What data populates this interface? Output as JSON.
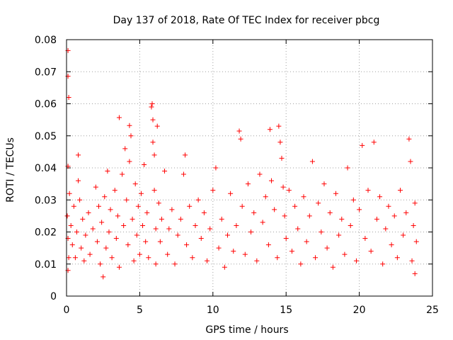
{
  "chart_data": {
    "type": "scatter",
    "title": "Day 137 of 2018, Rate Of TEC Index for receiver pbcg",
    "xlabel": "GPS time / hours",
    "ylabel": "ROTI / TECUs",
    "xlim": [
      0,
      25
    ],
    "ylim": [
      0,
      0.08
    ],
    "xticks": [
      0,
      5,
      10,
      15,
      20,
      25
    ],
    "xtick_labels": [
      "0",
      "5",
      "10",
      "15",
      "20",
      "25"
    ],
    "yticks": [
      0,
      0.01,
      0.02,
      0.03,
      0.04,
      0.05,
      0.06,
      0.07,
      0.08
    ],
    "ytick_labels": [
      "0",
      "0.01",
      "0.02",
      "0.03",
      "0.04",
      "0.05",
      "0.06",
      "0.07",
      "0.08"
    ],
    "grid": true,
    "marker": "+",
    "color": "#ff0000",
    "series": [
      {
        "name": "ROTI",
        "points": [
          [
            0.1,
            0.0766
          ],
          [
            0.1,
            0.0686
          ],
          [
            0.15,
            0.062
          ],
          [
            0.1,
            0.0405
          ],
          [
            0.2,
            0.032
          ],
          [
            0.05,
            0.025
          ],
          [
            0.1,
            0.018
          ],
          [
            0.15,
            0.012
          ],
          [
            0.1,
            0.008
          ],
          [
            0.3,
            0.022
          ],
          [
            0.4,
            0.016
          ],
          [
            0.5,
            0.028
          ],
          [
            0.6,
            0.012
          ],
          [
            0.7,
            0.02
          ],
          [
            0.8,
            0.044
          ],
          [
            0.8,
            0.036
          ],
          [
            0.9,
            0.03
          ],
          [
            1.0,
            0.015
          ],
          [
            1.1,
            0.024
          ],
          [
            1.2,
            0.011
          ],
          [
            1.3,
            0.019
          ],
          [
            1.5,
            0.026
          ],
          [
            1.6,
            0.013
          ],
          [
            1.8,
            0.021
          ],
          [
            2.0,
            0.034
          ],
          [
            2.1,
            0.017
          ],
          [
            2.2,
            0.028
          ],
          [
            2.3,
            0.01
          ],
          [
            2.4,
            0.023
          ],
          [
            2.5,
            0.006
          ],
          [
            2.6,
            0.031
          ],
          [
            2.7,
            0.015
          ],
          [
            2.8,
            0.039
          ],
          [
            2.9,
            0.02
          ],
          [
            3.0,
            0.027
          ],
          [
            3.1,
            0.012
          ],
          [
            3.3,
            0.033
          ],
          [
            3.4,
            0.018
          ],
          [
            3.5,
            0.025
          ],
          [
            3.6,
            0.009
          ],
          [
            3.6,
            0.0557
          ],
          [
            3.8,
            0.038
          ],
          [
            3.9,
            0.022
          ],
          [
            4.0,
            0.046
          ],
          [
            4.1,
            0.03
          ],
          [
            4.2,
            0.016
          ],
          [
            4.3,
            0.042
          ],
          [
            4.3,
            0.0532
          ],
          [
            4.4,
            0.05
          ],
          [
            4.5,
            0.024
          ],
          [
            4.6,
            0.011
          ],
          [
            4.7,
            0.035
          ],
          [
            4.8,
            0.019
          ],
          [
            4.9,
            0.028
          ],
          [
            5.0,
            0.013
          ],
          [
            5.1,
            0.032
          ],
          [
            5.2,
            0.022
          ],
          [
            5.3,
            0.041
          ],
          [
            5.4,
            0.017
          ],
          [
            5.5,
            0.026
          ],
          [
            5.6,
            0.012
          ],
          [
            5.8,
            0.059
          ],
          [
            5.85,
            0.06
          ],
          [
            5.9,
            0.055
          ],
          [
            5.9,
            0.048
          ],
          [
            6.0,
            0.044
          ],
          [
            6.0,
            0.033
          ],
          [
            6.1,
            0.021
          ],
          [
            6.1,
            0.01
          ],
          [
            6.2,
            0.053
          ],
          [
            6.3,
            0.029
          ],
          [
            6.4,
            0.017
          ],
          [
            6.5,
            0.024
          ],
          [
            6.7,
            0.039
          ],
          [
            6.9,
            0.013
          ],
          [
            7.0,
            0.021
          ],
          [
            7.2,
            0.027
          ],
          [
            7.4,
            0.01
          ],
          [
            7.6,
            0.019
          ],
          [
            7.8,
            0.024
          ],
          [
            8.0,
            0.038
          ],
          [
            8.1,
            0.044
          ],
          [
            8.2,
            0.016
          ],
          [
            8.4,
            0.028
          ],
          [
            8.6,
            0.012
          ],
          [
            8.8,
            0.022
          ],
          [
            9.0,
            0.03
          ],
          [
            9.2,
            0.018
          ],
          [
            9.4,
            0.026
          ],
          [
            9.6,
            0.011
          ],
          [
            9.8,
            0.021
          ],
          [
            10.0,
            0.033
          ],
          [
            10.2,
            0.04
          ],
          [
            10.4,
            0.015
          ],
          [
            10.6,
            0.024
          ],
          [
            10.8,
            0.009
          ],
          [
            11.0,
            0.019
          ],
          [
            11.2,
            0.032
          ],
          [
            11.4,
            0.014
          ],
          [
            11.6,
            0.022
          ],
          [
            11.8,
            0.0515
          ],
          [
            11.9,
            0.049
          ],
          [
            12.0,
            0.028
          ],
          [
            12.2,
            0.013
          ],
          [
            12.4,
            0.035
          ],
          [
            12.6,
            0.02
          ],
          [
            12.8,
            0.026
          ],
          [
            13.0,
            0.011
          ],
          [
            13.2,
            0.038
          ],
          [
            13.4,
            0.023
          ],
          [
            13.6,
            0.031
          ],
          [
            13.8,
            0.016
          ],
          [
            13.9,
            0.052
          ],
          [
            14.0,
            0.036
          ],
          [
            14.2,
            0.027
          ],
          [
            14.4,
            0.012
          ],
          [
            14.5,
            0.053
          ],
          [
            14.6,
            0.048
          ],
          [
            14.7,
            0.043
          ],
          [
            14.8,
            0.034
          ],
          [
            14.9,
            0.025
          ],
          [
            15.0,
            0.018
          ],
          [
            15.2,
            0.033
          ],
          [
            15.4,
            0.014
          ],
          [
            15.6,
            0.028
          ],
          [
            15.8,
            0.021
          ],
          [
            16.0,
            0.01
          ],
          [
            16.2,
            0.031
          ],
          [
            16.4,
            0.017
          ],
          [
            16.6,
            0.025
          ],
          [
            16.8,
            0.042
          ],
          [
            17.0,
            0.012
          ],
          [
            17.2,
            0.029
          ],
          [
            17.4,
            0.02
          ],
          [
            17.6,
            0.035
          ],
          [
            17.8,
            0.015
          ],
          [
            18.0,
            0.026
          ],
          [
            18.2,
            0.009
          ],
          [
            18.4,
            0.032
          ],
          [
            18.6,
            0.019
          ],
          [
            18.8,
            0.024
          ],
          [
            19.0,
            0.013
          ],
          [
            19.2,
            0.04
          ],
          [
            19.4,
            0.022
          ],
          [
            19.6,
            0.03
          ],
          [
            19.8,
            0.011
          ],
          [
            20.0,
            0.027
          ],
          [
            20.2,
            0.047
          ],
          [
            20.4,
            0.018
          ],
          [
            20.6,
            0.033
          ],
          [
            20.8,
            0.014
          ],
          [
            21.0,
            0.048
          ],
          [
            21.2,
            0.024
          ],
          [
            21.4,
            0.031
          ],
          [
            21.6,
            0.01
          ],
          [
            21.8,
            0.021
          ],
          [
            22.0,
            0.028
          ],
          [
            22.2,
            0.016
          ],
          [
            22.4,
            0.025
          ],
          [
            22.6,
            0.012
          ],
          [
            22.8,
            0.033
          ],
          [
            23.0,
            0.019
          ],
          [
            23.2,
            0.026
          ],
          [
            23.4,
            0.049
          ],
          [
            23.5,
            0.042
          ],
          [
            23.6,
            0.011
          ],
          [
            23.7,
            0.022
          ],
          [
            23.8,
            0.029
          ],
          [
            23.8,
            0.007
          ],
          [
            23.9,
            0.017
          ]
        ]
      }
    ]
  }
}
